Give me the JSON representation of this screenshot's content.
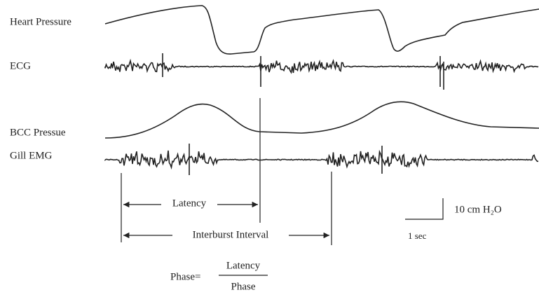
{
  "traces": [
    {
      "label": "Heart Pressure"
    },
    {
      "label": "ECG"
    },
    {
      "label": "BCC Pressue"
    },
    {
      "label": "Gill EMG"
    }
  ],
  "intervals": {
    "latency": "Latency",
    "interburst": "Interburst Interval"
  },
  "scale_bar": {
    "vertical": "10 cm H₂O",
    "horizontal": "1 sec"
  },
  "formula": {
    "lhs": "Phase=",
    "numerator": "Latency",
    "denominator": "Phase"
  }
}
